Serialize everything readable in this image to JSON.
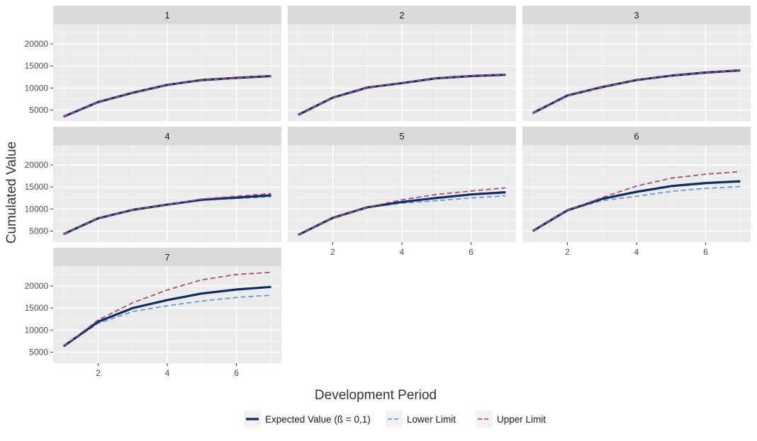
{
  "chart_data": {
    "type": "line",
    "xlabel": "Development Period",
    "ylabel": "Cumulated Value",
    "xlim": [
      0.7,
      7.3
    ],
    "ylim": [
      2500,
      24500
    ],
    "x_ticks": [
      2,
      4,
      6
    ],
    "y_ticks": [
      5000,
      10000,
      15000,
      20000
    ],
    "x_ticks_labels": [
      "2",
      "4",
      "6"
    ],
    "y_ticks_labels": [
      "5000",
      "10000",
      "15000",
      "20000"
    ],
    "grid": true,
    "legend": {
      "position": "bottom",
      "entries": [
        {
          "key": "expected",
          "label": "Expected Value (ß = 0,1)",
          "color": "#0a2d6e",
          "style": "solid"
        },
        {
          "key": "lower",
          "label": "Lower Limit",
          "color": "#6a96dc",
          "style": "dashed"
        },
        {
          "key": "upper",
          "label": "Upper Limit",
          "color": "#b0487f",
          "style": "dashed"
        }
      ]
    },
    "x": [
      1,
      2,
      3,
      4,
      5,
      6,
      7
    ],
    "panels": [
      {
        "label": "1",
        "expected": [
          3500,
          6800,
          8900,
          10700,
          11800,
          12300,
          12700
        ],
        "lower": [
          3500,
          6800,
          8900,
          10700,
          11800,
          12300,
          12650
        ],
        "upper": [
          3500,
          6800,
          8900,
          10700,
          11800,
          12300,
          12750
        ]
      },
      {
        "label": "2",
        "expected": [
          3900,
          7800,
          10100,
          11100,
          12200,
          12700,
          13000
        ],
        "lower": [
          3900,
          7800,
          10100,
          11100,
          12200,
          12700,
          12950
        ],
        "upper": [
          3900,
          7800,
          10100,
          11100,
          12200,
          12700,
          13050
        ]
      },
      {
        "label": "3",
        "expected": [
          4300,
          8300,
          10200,
          11800,
          12800,
          13500,
          14000
        ],
        "lower": [
          4300,
          8300,
          10200,
          11800,
          12800,
          13500,
          13900
        ],
        "upper": [
          4300,
          8300,
          10200,
          11800,
          12800,
          13500,
          14100
        ]
      },
      {
        "label": "4",
        "expected": [
          4300,
          7900,
          9800,
          11000,
          12100,
          12600,
          13100
        ],
        "lower": [
          4300,
          7900,
          9800,
          11000,
          12000,
          12400,
          12800
        ],
        "upper": [
          4300,
          7900,
          9800,
          11000,
          12300,
          12900,
          13500
        ]
      },
      {
        "label": "5",
        "expected": [
          4100,
          8000,
          10400,
          11600,
          12500,
          13300,
          13800
        ],
        "lower": [
          4100,
          8000,
          10400,
          11300,
          11900,
          12500,
          13000
        ],
        "upper": [
          4100,
          8000,
          10400,
          12100,
          13300,
          14100,
          14800
        ]
      },
      {
        "label": "6",
        "expected": [
          5000,
          9700,
          12300,
          13900,
          15200,
          15900,
          16300
        ],
        "lower": [
          5000,
          9700,
          11900,
          12900,
          14000,
          14700,
          15100
        ],
        "upper": [
          5000,
          9700,
          12600,
          15200,
          17000,
          17900,
          18500
        ]
      },
      {
        "label": "7",
        "expected": [
          6300,
          11900,
          15000,
          16800,
          18300,
          19200,
          19800
        ],
        "lower": [
          6300,
          11500,
          14200,
          15500,
          16600,
          17400,
          17900
        ],
        "upper": [
          6300,
          12300,
          16200,
          19100,
          21400,
          22600,
          23100
        ]
      }
    ]
  }
}
